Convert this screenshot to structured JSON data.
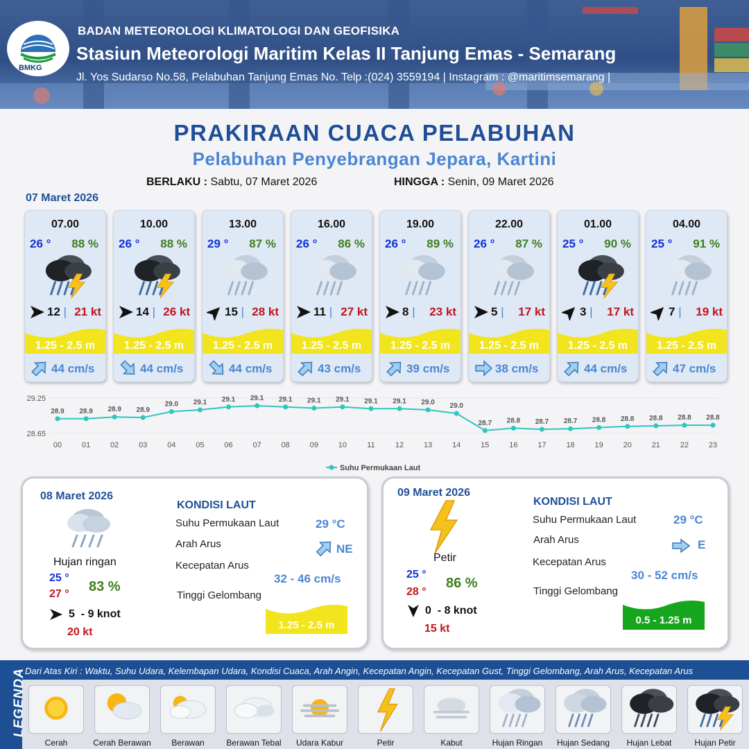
{
  "header": {
    "org": "BADAN METEOROLOGI KLIMATOLOGI DAN GEOFISIKA",
    "station": "Stasiun Meteorologi Maritim Kelas II Tanjung Emas - Semarang",
    "address": "Jl. Yos Sudarso No.58, Pelabuhan Tanjung Emas No. Telp :(024) 3559194 | Instagram : @maritimsemarang |",
    "logo_text": "BMKG"
  },
  "title": "PRAKIRAAN CUACA PELABUHAN",
  "subtitle": "Pelabuhan Penyebrangan Jepara, Kartini",
  "validity": {
    "from_label": "BERLAKU :",
    "from_value": "Sabtu, 07 Maret 2026",
    "to_label": "HINGGA :",
    "to_value": "Senin, 09 Maret 2026"
  },
  "day1_date": "07 Maret 2026",
  "cards": [
    {
      "time": "07.00",
      "temp": "26 °",
      "hum": "88 %",
      "icon": "hujan-petir",
      "wind_dir": "east",
      "wind": "12",
      "gust": "21 kt",
      "wave": "1.25 - 2.5 m",
      "current_dir": "northeast",
      "current": "44 cm/s"
    },
    {
      "time": "10.00",
      "temp": "26 °",
      "hum": "88 %",
      "icon": "hujan-petir",
      "wind_dir": "east",
      "wind": "14",
      "gust": "26 kt",
      "wave": "1.25 - 2.5 m",
      "current_dir": "southeast",
      "current": "44 cm/s"
    },
    {
      "time": "13.00",
      "temp": "29 °",
      "hum": "87 %",
      "icon": "hujan-ringan",
      "wind_dir": "northeast",
      "wind": "15",
      "gust": "28 kt",
      "wave": "1.25 - 2.5 m",
      "current_dir": "southeast",
      "current": "44 cm/s"
    },
    {
      "time": "16.00",
      "temp": "26 °",
      "hum": "86 %",
      "icon": "hujan-ringan",
      "wind_dir": "east",
      "wind": "11",
      "gust": "27 kt",
      "wave": "1.25 - 2.5 m",
      "current_dir": "northeast",
      "current": "43 cm/s"
    },
    {
      "time": "19.00",
      "temp": "26 °",
      "hum": "89 %",
      "icon": "hujan-ringan",
      "wind_dir": "east",
      "wind": "8",
      "gust": "23 kt",
      "wave": "1.25 - 2.5 m",
      "current_dir": "northeast",
      "current": "39 cm/s"
    },
    {
      "time": "22.00",
      "temp": "26 °",
      "hum": "87 %",
      "icon": "hujan-ringan",
      "wind_dir": "east",
      "wind": "5",
      "gust": "17 kt",
      "wave": "1.25 - 2.5 m",
      "current_dir": "east",
      "current": "38 cm/s"
    },
    {
      "time": "01.00",
      "temp": "25 °",
      "hum": "90 %",
      "icon": "hujan-petir",
      "wind_dir": "northeast",
      "wind": "3",
      "gust": "17 kt",
      "wave": "1.25 - 2.5 m",
      "current_dir": "northeast",
      "current": "44 cm/s"
    },
    {
      "time": "04.00",
      "temp": "25 °",
      "hum": "91 %",
      "icon": "hujan-ringan",
      "wind_dir": "northeast",
      "wind": "7",
      "gust": "19 kt",
      "wave": "1.25 - 2.5 m",
      "current_dir": "northeast",
      "current": "47 cm/s"
    }
  ],
  "colors": {
    "header_blue": "#2f4f86",
    "title_blue": "#1f4e97",
    "subtitle_blue": "#4a86d2",
    "wave_yellow": "#f2e51d",
    "wave_green": "#18a51e",
    "chart_line": "#2cc6be",
    "temp_blue": "#1231d8",
    "hum_green": "#3f7f1f",
    "gust_red": "#c0151b",
    "legend_blue": "#1c4f93"
  },
  "chart_data": {
    "type": "line",
    "x": [
      "00",
      "01",
      "02",
      "03",
      "04",
      "05",
      "06",
      "07",
      "08",
      "09",
      "10",
      "11",
      "12",
      "13",
      "14",
      "15",
      "16",
      "17",
      "18",
      "19",
      "20",
      "21",
      "22",
      "23"
    ],
    "series": [
      {
        "name": "Suhu Permukaan Laut",
        "values": [
          28.9,
          28.9,
          28.9,
          28.9,
          29.0,
          29.1,
          29.1,
          29.1,
          29.1,
          29.1,
          29.1,
          29.1,
          29.1,
          29.0,
          29.0,
          28.7,
          28.8,
          28.7,
          28.7,
          28.8,
          28.8,
          28.8,
          28.8,
          28.8
        ]
      }
    ],
    "y_plotted": [
      28.9,
      28.9,
      28.93,
      28.92,
      29.02,
      29.05,
      29.1,
      29.12,
      29.1,
      29.08,
      29.1,
      29.07,
      29.07,
      29.05,
      28.99,
      28.7,
      28.74,
      28.72,
      28.73,
      28.75,
      28.77,
      28.78,
      28.79,
      28.79
    ],
    "ylim": [
      28.65,
      29.25
    ],
    "yticks": [
      "28.65",
      "29.25"
    ],
    "grid": true,
    "legend_position": "bottom"
  },
  "day2": {
    "date": "08 Maret 2026",
    "condition": "Hujan ringan",
    "icon": "hujan-ringan",
    "temp_min": "25 °",
    "temp_max": "27 °",
    "humidity": "83 %",
    "wind_dir": "east",
    "wind": "5  - 9 knot",
    "gust": "20 kt",
    "kondisi_title": "KONDISI LAUT",
    "sst_label": "Suhu Permukaan Laut",
    "sst": "29 °C",
    "current_dir_label": "Arah Arus",
    "current_dir_icon": "northeast",
    "current_dir": "NE",
    "current_speed_label": "Kecepatan Arus",
    "current_speed": "32 - 46 cm/s",
    "wave_label": "Tinggi Gelombang",
    "wave": "1.25 - 2.5 m"
  },
  "day3": {
    "date": "09 Maret 2026",
    "condition": "Petir",
    "icon": "petir",
    "temp_min": "25 °",
    "temp_max": "28 °",
    "humidity": "86 %",
    "wind_dir": "south",
    "wind": "0  - 8 knot",
    "gust": "15 kt",
    "kondisi_title": "KONDISI LAUT",
    "sst_label": "Suhu Permukaan Laut",
    "sst": "29 °C",
    "current_dir_label": "Arah Arus",
    "current_dir_icon": "east",
    "current_dir": "E",
    "current_speed_label": "Kecepatan Arus",
    "current_speed": "30 - 52 cm/s",
    "wave_label": "Tinggi Gelombang",
    "wave": "0.5 - 1.25 m"
  },
  "legend": {
    "title": "LEGENDA",
    "description": "Dari Atas Kiri : Waktu, Suhu Udara, Kelembapan Udara, Kondisi Cuaca, Arah Angin, Kecepatan Angin, Kecepatan Gust, Tinggi Gelombang, Arah Arus, Kecepatan Arus",
    "items": [
      {
        "label": "Cerah",
        "icon": "cerah"
      },
      {
        "label": "Cerah Berawan",
        "icon": "cerah-berawan"
      },
      {
        "label": "Berawan",
        "icon": "berawan"
      },
      {
        "label": "Berawan Tebal",
        "icon": "berawan-tebal"
      },
      {
        "label": "Udara Kabur",
        "icon": "udara-kabur"
      },
      {
        "label": "Petir",
        "icon": "petir"
      },
      {
        "label": "Kabut",
        "icon": "kabut"
      },
      {
        "label": "Hujan Ringan",
        "icon": "hujan-ringan"
      },
      {
        "label": "Hujan Sedang",
        "icon": "hujan-sedang"
      },
      {
        "label": "Hujan Lebat",
        "icon": "hujan-lebat"
      },
      {
        "label": "Hujan Petir",
        "icon": "hujan-petir"
      }
    ]
  }
}
